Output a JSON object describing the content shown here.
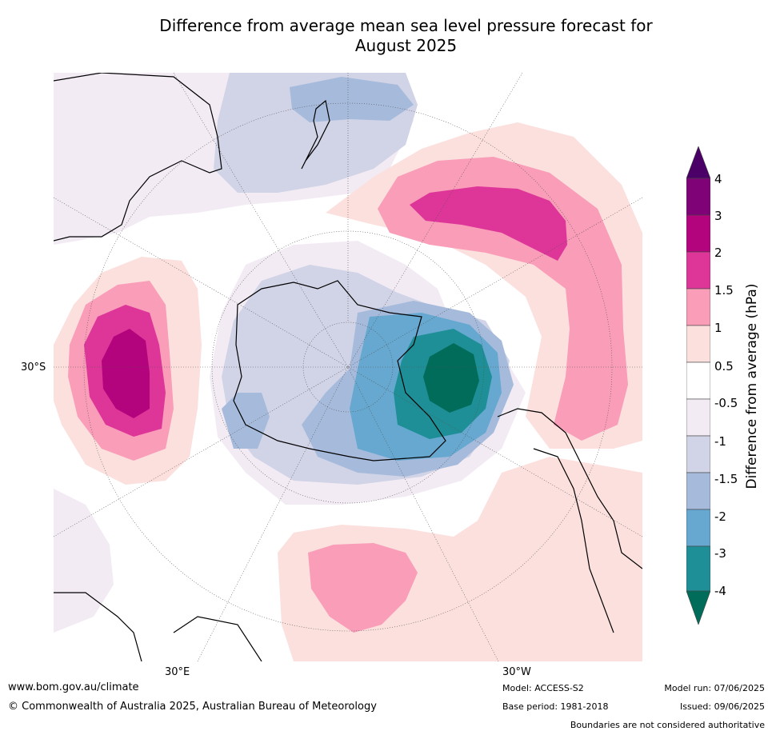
{
  "title_line1": "Difference from average mean sea level pressure forecast for",
  "title_line2": "August 2025",
  "map": {
    "projection": "south polar stereographic",
    "lat_labels": [
      "30°S",
      "30°E",
      "30°W"
    ],
    "coastline_color": "#000000",
    "graticule": "dotted"
  },
  "colorbar": {
    "title": "Difference from average (hPa)",
    "ticks": [
      "4",
      "3",
      "2",
      "1.5",
      "1",
      "0.5",
      "-0.5",
      "-1",
      "-1.5",
      "-2",
      "-3",
      "-4"
    ],
    "colors": {
      "gt4": "#4b0068",
      "3_4": "#7f0377",
      "2_3": "#b3037d",
      "1.5_2": "#de3598",
      "1_1.5": "#f99db8",
      "0.5_1": "#fbe0de",
      "neutral": "#ffffff",
      "-1_-0.5": "#f2ebf4",
      "-1.5_-1": "#d1d3e6",
      "-2_-1.5": "#a6bbdb",
      "-3_-2": "#66a8d0",
      "-4_-3": "#1e8f96",
      "lt-4": "#016c59"
    }
  },
  "footer": {
    "url": "www.bom.gov.au/climate",
    "copyright": "© Commonwealth of Australia 2025, Australian Bureau of Meteorology",
    "model": "Model: ACCESS-S2",
    "base_period": "Base period: 1981-2018",
    "model_run": "Model run: 07/06/2025",
    "issued": "Issued: 09/06/2025",
    "disclaimer": "Boundaries are not considered authoritative"
  }
}
